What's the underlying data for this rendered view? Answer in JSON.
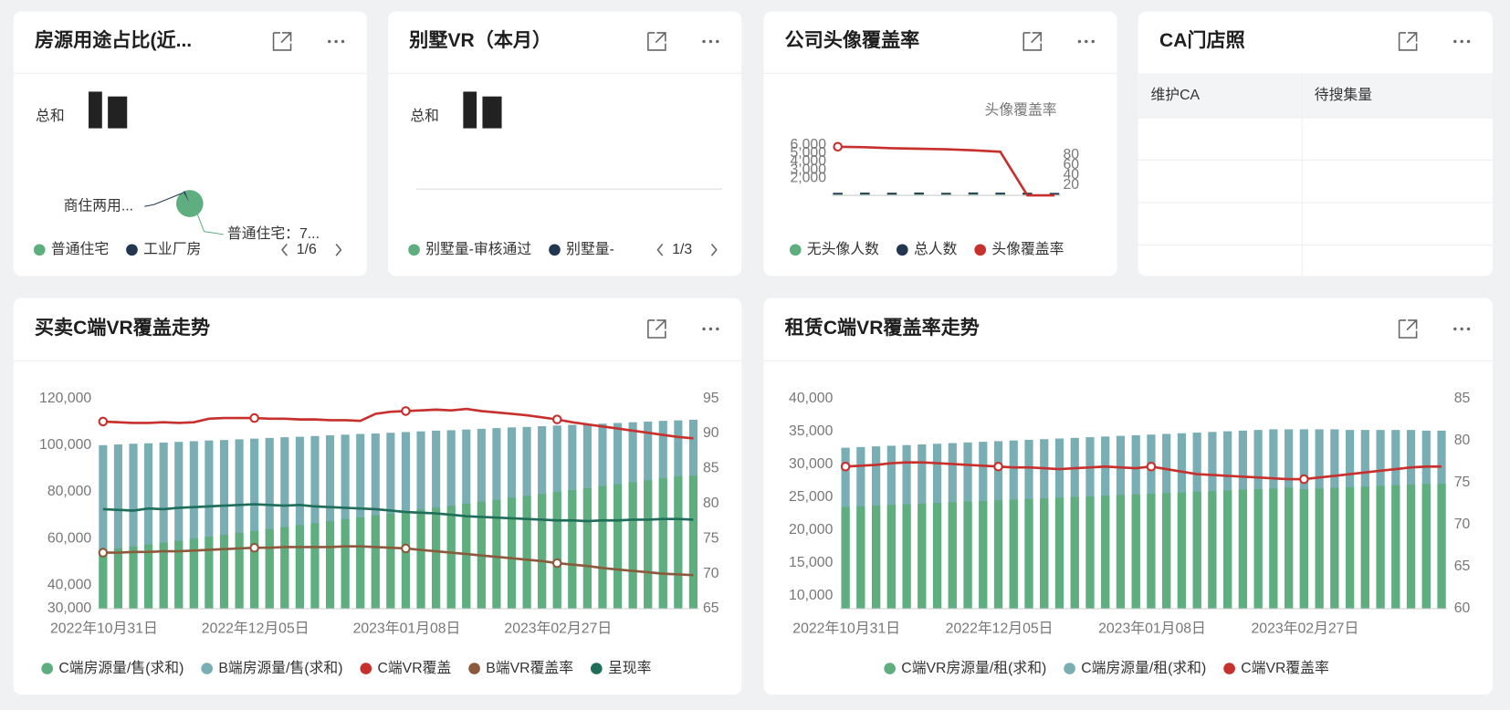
{
  "cards": [
    {
      "title": "房源用途占比(近...",
      "total_label": "总和",
      "pager": "1/6"
    },
    {
      "title": "别墅VR（本月）",
      "total_label": "总和",
      "legend": [
        "别墅量-审核通过",
        "别墅量-"
      ],
      "pager": "1/3"
    },
    {
      "title": "公司头像覆盖率"
    },
    {
      "title": "CA门店照",
      "table": {
        "columns": [
          "维护CA",
          "待搜集量"
        ]
      }
    },
    {
      "title": "买卖C端VR覆盖走势"
    },
    {
      "title": "租赁C端VR覆盖率走势"
    }
  ],
  "chart_data": [
    {
      "type": "pie",
      "categories": [
        "普通住宅",
        "工业厂房"
      ],
      "values": [
        98,
        2
      ],
      "colors": [
        "#5fae7f",
        "#22374f"
      ],
      "annotations": [
        "商住两用...",
        "普通住宅：7..."
      ]
    },
    {
      "type": "combo",
      "y2label": "头像覆盖率",
      "categories": [
        null,
        null,
        null,
        null,
        null,
        null,
        null,
        null,
        null
      ],
      "ylim": [
        0,
        6000
      ],
      "yticks": [
        {
          "value": 2000,
          "label": "2,000"
        },
        {
          "value": 3000,
          "label": "3,000"
        },
        {
          "value": 4000,
          "label": "4,000"
        },
        {
          "value": 5000,
          "label": "5,000"
        },
        {
          "value": 6000,
          "label": "6,000"
        }
      ],
      "y2lim": [
        0,
        100
      ],
      "y2ticks": [
        20,
        40,
        60,
        80
      ],
      "series": [
        {
          "name": "无头像人数",
          "type": "bar",
          "color": "#5fae7f",
          "values": [
            120,
            130,
            110,
            140,
            120,
            150,
            130,
            110,
            100
          ]
        },
        {
          "name": "总人数",
          "type": "bar",
          "color": "#22374f",
          "values": [
            300,
            320,
            310,
            330,
            300,
            340,
            320,
            310,
            290
          ]
        },
        {
          "name": "头像覆盖率",
          "type": "line",
          "axis": "y2",
          "color": "#c7302c",
          "markers": true,
          "values": [
            96,
            95,
            93,
            92,
            91,
            89,
            86,
            0,
            0
          ]
        }
      ]
    },
    {
      "type": "combo",
      "categories": [
        "2022年10月31日",
        null,
        null,
        null,
        null,
        null,
        null,
        null,
        null,
        null,
        "2022年12月05日",
        null,
        null,
        null,
        null,
        null,
        null,
        null,
        null,
        null,
        "2023年01月08日",
        null,
        null,
        null,
        null,
        null,
        null,
        null,
        null,
        null,
        "2023年02月27日",
        null,
        null,
        null,
        null,
        null,
        null,
        null,
        null,
        null
      ],
      "ylim": [
        30000,
        120000
      ],
      "yticks": [
        {
          "value": 30000,
          "label": "30,000"
        },
        {
          "value": 40000,
          "label": "40,000"
        },
        {
          "value": 60000,
          "label": "60,000"
        },
        {
          "value": 80000,
          "label": "80,000"
        },
        {
          "value": 100000,
          "label": "100,000"
        },
        {
          "value": 120000,
          "label": "120,000"
        }
      ],
      "y2lim": [
        65,
        95
      ],
      "y2ticks": [
        65,
        70,
        75,
        80,
        85,
        90,
        95
      ],
      "series": [
        {
          "name": "C端房源量/售(求和)",
          "type": "bar",
          "color": "#5fae7f",
          "values": [
            55000,
            55800,
            56600,
            57500,
            58300,
            59100,
            60000,
            60800,
            61600,
            62500,
            63300,
            64100,
            65000,
            65800,
            66600,
            67500,
            68300,
            69100,
            70000,
            70800,
            71600,
            72500,
            73300,
            74100,
            75000,
            75800,
            76600,
            77500,
            78300,
            79100,
            80000,
            80800,
            81600,
            82500,
            83300,
            84100,
            85000,
            85800,
            86600,
            87000
          ]
        },
        {
          "name": "B端房源量/售(求和)",
          "type": "bar",
          "color": "#79aeb5",
          "values": [
            100000,
            100300,
            100600,
            100800,
            101100,
            101400,
            101700,
            102000,
            102200,
            102500,
            102800,
            103100,
            103400,
            103600,
            103900,
            104200,
            104500,
            104800,
            105000,
            105300,
            105600,
            105900,
            106200,
            106400,
            106700,
            107000,
            107300,
            107600,
            107800,
            108100,
            108400,
            108700,
            109000,
            109200,
            109500,
            109800,
            110100,
            110400,
            110600,
            110900
          ]
        },
        {
          "name": "C端VR覆盖",
          "type": "line",
          "axis": "y2",
          "color": "#c7302c",
          "markers": true,
          "values": [
            91.7,
            91.6,
            91.5,
            91.5,
            91.6,
            91.5,
            91.6,
            92.1,
            92.2,
            92.2,
            92.2,
            92.1,
            92.1,
            92.0,
            92.0,
            91.9,
            91.9,
            91.8,
            92.8,
            93.1,
            93.2,
            93.3,
            93.4,
            93.3,
            93.5,
            93.2,
            93.0,
            92.8,
            92.6,
            92.3,
            92.0,
            91.6,
            91.3,
            91.0,
            90.7,
            90.4,
            90.1,
            89.8,
            89.5,
            89.3
          ]
        },
        {
          "name": "B端VR覆盖率",
          "type": "line",
          "axis": "y2",
          "color": "#8b5a3c",
          "markers": true,
          "values": [
            73.0,
            73.0,
            73.1,
            73.1,
            73.2,
            73.2,
            73.3,
            73.4,
            73.5,
            73.6,
            73.7,
            73.7,
            73.8,
            73.8,
            73.8,
            73.8,
            73.9,
            73.9,
            73.8,
            73.7,
            73.6,
            73.4,
            73.2,
            73.0,
            72.8,
            72.6,
            72.4,
            72.2,
            72.0,
            71.8,
            71.5,
            71.3,
            71.1,
            70.8,
            70.6,
            70.4,
            70.2,
            70.0,
            69.9,
            69.8
          ]
        },
        {
          "name": "呈现率",
          "type": "line",
          "axis": "y2",
          "color": "#1e6e5a",
          "values": [
            79.2,
            79.1,
            79.0,
            79.3,
            79.2,
            79.4,
            79.5,
            79.6,
            79.7,
            79.8,
            79.9,
            79.8,
            79.7,
            79.8,
            79.6,
            79.5,
            79.4,
            79.3,
            79.2,
            79.0,
            78.8,
            78.7,
            78.6,
            78.4,
            78.2,
            78.1,
            78.0,
            77.9,
            77.8,
            77.7,
            77.6,
            77.6,
            77.5,
            77.6,
            77.6,
            77.7,
            77.7,
            77.8,
            77.8,
            77.7
          ]
        }
      ]
    },
    {
      "type": "combo",
      "categories": [
        "2022年10月31日",
        null,
        null,
        null,
        null,
        null,
        null,
        null,
        null,
        null,
        "2022年12月05日",
        null,
        null,
        null,
        null,
        null,
        null,
        null,
        null,
        null,
        "2023年01月08日",
        null,
        null,
        null,
        null,
        null,
        null,
        null,
        null,
        null,
        "2023年02月27日",
        null,
        null,
        null,
        null,
        null,
        null,
        null,
        null,
        null
      ],
      "ylim": [
        8000,
        40000
      ],
      "yticks": [
        {
          "value": 10000,
          "label": "10,000"
        },
        {
          "value": 15000,
          "label": "15,000"
        },
        {
          "value": 20000,
          "label": "20,000"
        },
        {
          "value": 25000,
          "label": "25,000"
        },
        {
          "value": 30000,
          "label": "30,000"
        },
        {
          "value": 35000,
          "label": "35,000"
        },
        {
          "value": 40000,
          "label": "40,000"
        }
      ],
      "y2lim": [
        60,
        85
      ],
      "y2ticks": [
        60,
        65,
        70,
        75,
        80,
        85
      ],
      "series": [
        {
          "name": "C端VR房源量/租(求和)",
          "type": "bar",
          "color": "#5fae7f",
          "values": [
            23500,
            23600,
            23700,
            23800,
            23900,
            24000,
            24100,
            24200,
            24300,
            24400,
            24500,
            24600,
            24700,
            24800,
            24900,
            25000,
            25100,
            25200,
            25300,
            25400,
            25500,
            25600,
            25700,
            25800,
            25900,
            26000,
            26100,
            26200,
            26300,
            26400,
            26200,
            26300,
            26400,
            26500,
            26600,
            26700,
            26800,
            26900,
            27000,
            27000
          ]
        },
        {
          "name": "C端房源量/租(求和)",
          "type": "bar",
          "color": "#79aeb5",
          "values": [
            32500,
            32600,
            32700,
            32800,
            32900,
            33000,
            33100,
            33200,
            33300,
            33400,
            33500,
            33600,
            33700,
            33800,
            33900,
            34000,
            34100,
            34200,
            34300,
            34400,
            34500,
            34600,
            34700,
            34800,
            34900,
            35000,
            35100,
            35200,
            35300,
            35300,
            35300,
            35300,
            35300,
            35200,
            35200,
            35200,
            35200,
            35200,
            35100,
            35100
          ]
        },
        {
          "name": "C端VR覆盖率",
          "type": "line",
          "axis": "y2",
          "color": "#c7302c",
          "markers": true,
          "values": [
            76.9,
            77.0,
            77.1,
            77.3,
            77.4,
            77.4,
            77.3,
            77.2,
            77.1,
            77.0,
            76.9,
            76.8,
            76.8,
            76.7,
            76.6,
            76.7,
            76.8,
            76.9,
            76.8,
            76.7,
            76.9,
            76.6,
            76.3,
            76.0,
            75.9,
            75.8,
            75.7,
            75.6,
            75.5,
            75.4,
            75.4,
            75.6,
            75.8,
            76.0,
            76.2,
            76.4,
            76.6,
            76.8,
            76.9,
            76.9
          ]
        }
      ]
    }
  ]
}
